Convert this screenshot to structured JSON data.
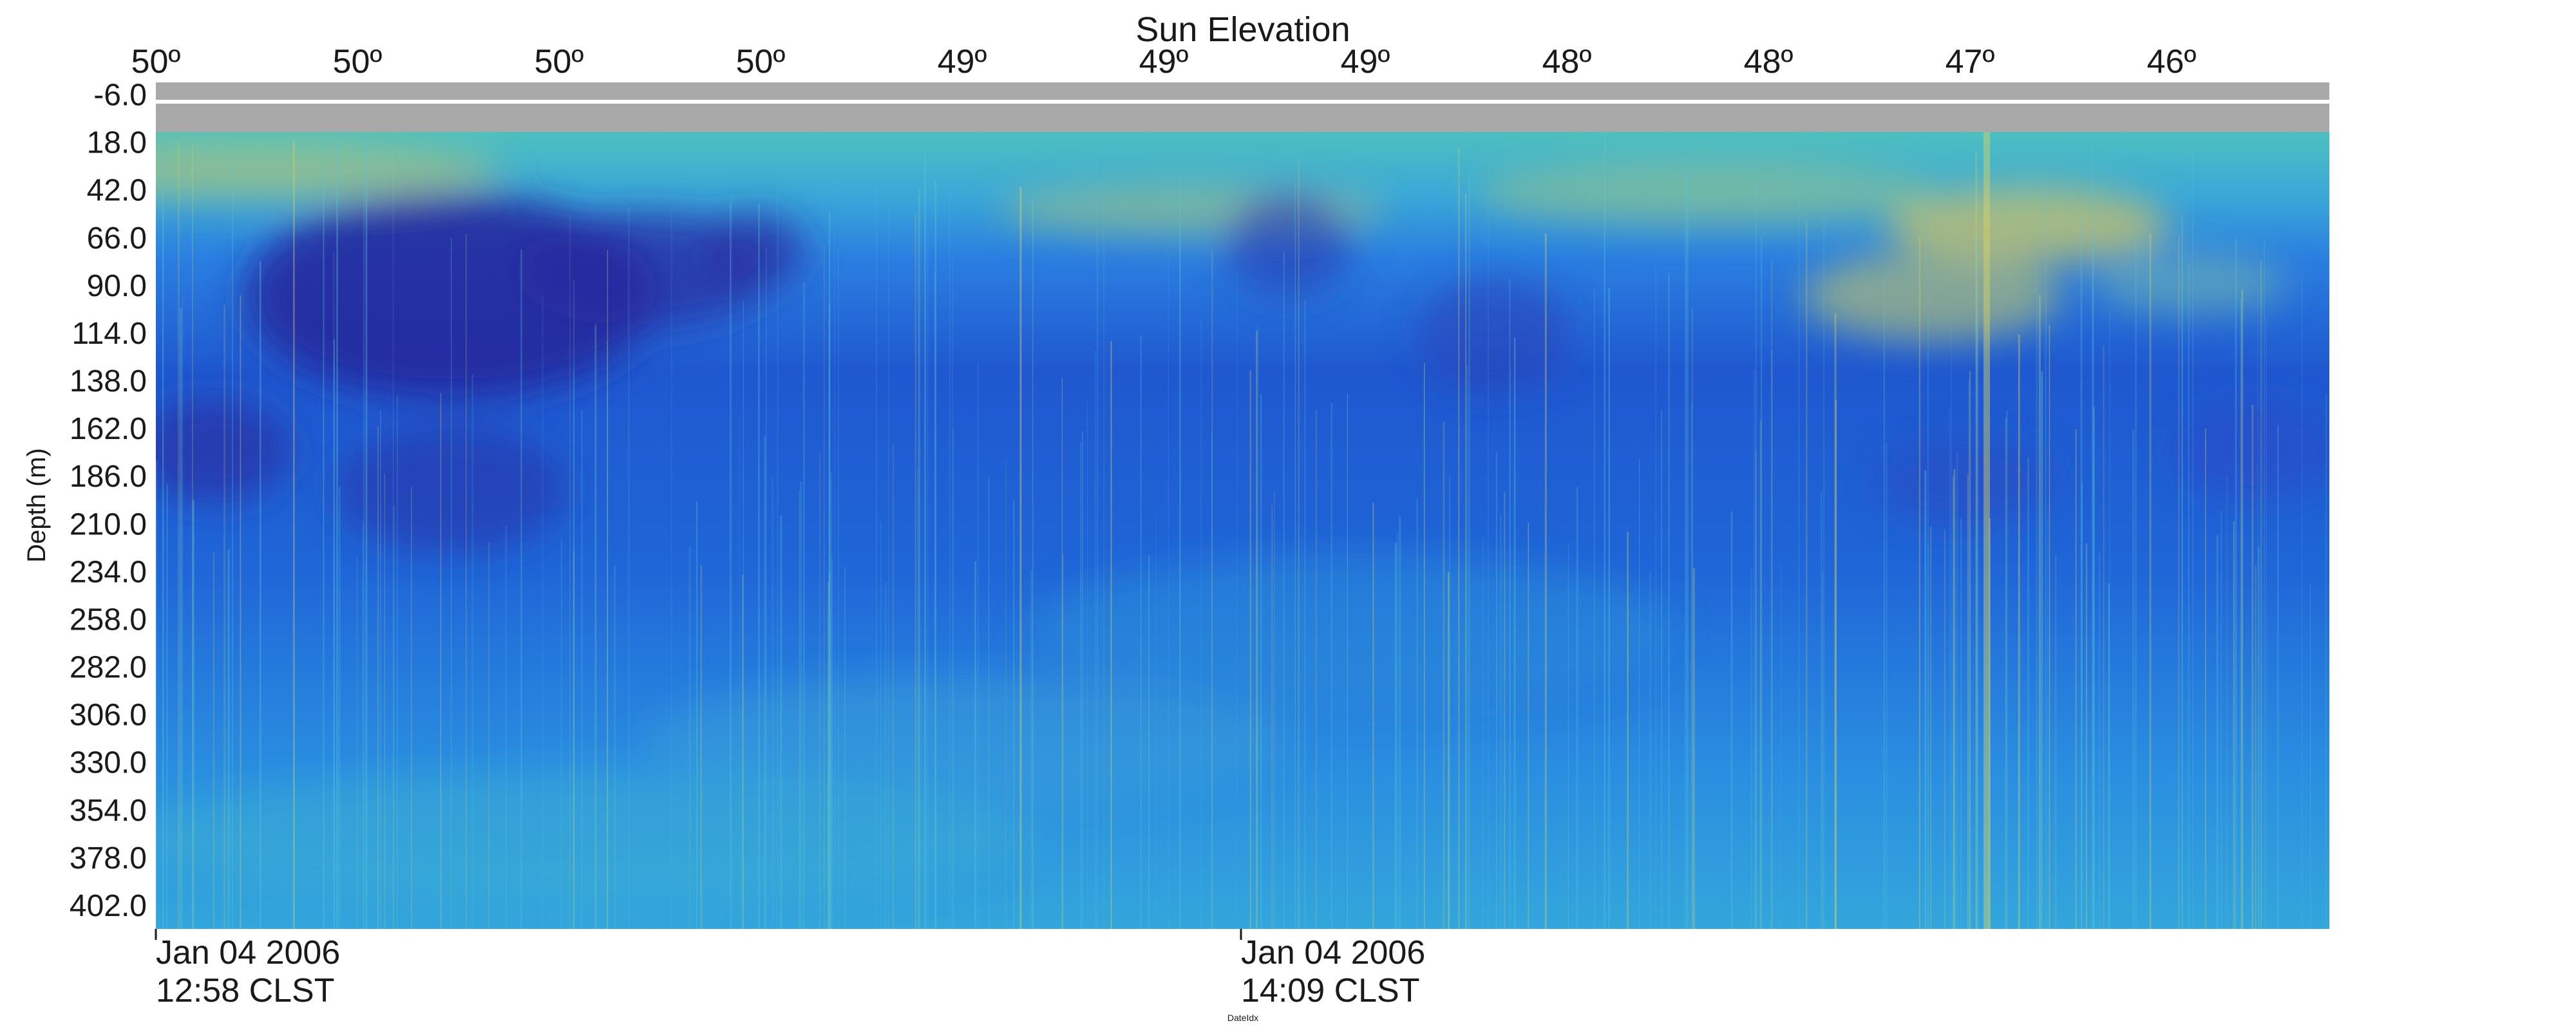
{
  "chart_data": {
    "type": "heatmap",
    "title": "Sun Elevation",
    "ylabel": "Depth (m)",
    "xlabel": "DateIdx",
    "y_ticks": [
      "-6.0",
      "18.0",
      "42.0",
      "66.0",
      "90.0",
      "114.0",
      "138.0",
      "162.0",
      "186.0",
      "210.0",
      "234.0",
      "258.0",
      "282.0",
      "306.0",
      "330.0",
      "354.0",
      "378.0",
      "402.0"
    ],
    "y_ticks_values": [
      -6,
      18,
      42,
      66,
      90,
      114,
      138,
      162,
      186,
      210,
      234,
      258,
      282,
      306,
      330,
      354,
      378,
      402
    ],
    "ylim": [
      -12,
      414
    ],
    "y_no_data_above": 6,
    "top_axis_ticks": [
      "50º",
      "50º",
      "50º",
      "50º",
      "49º",
      "49º",
      "49º",
      "48º",
      "48º",
      "47º",
      "46º"
    ],
    "bottom_axis_ticks": [
      {
        "date": "Jan 04 2006",
        "time": "12:58 CLST"
      },
      {
        "date": "Jan 04 2006",
        "time": "14:09 CLST"
      }
    ],
    "colors": {
      "no_data": "#a9a9a9",
      "low": "#2d2f9a",
      "mid": "#1f63d8",
      "mid_high": "#2aa6d8",
      "high": "#e7d65a"
    },
    "grid": false,
    "legend": "none"
  }
}
